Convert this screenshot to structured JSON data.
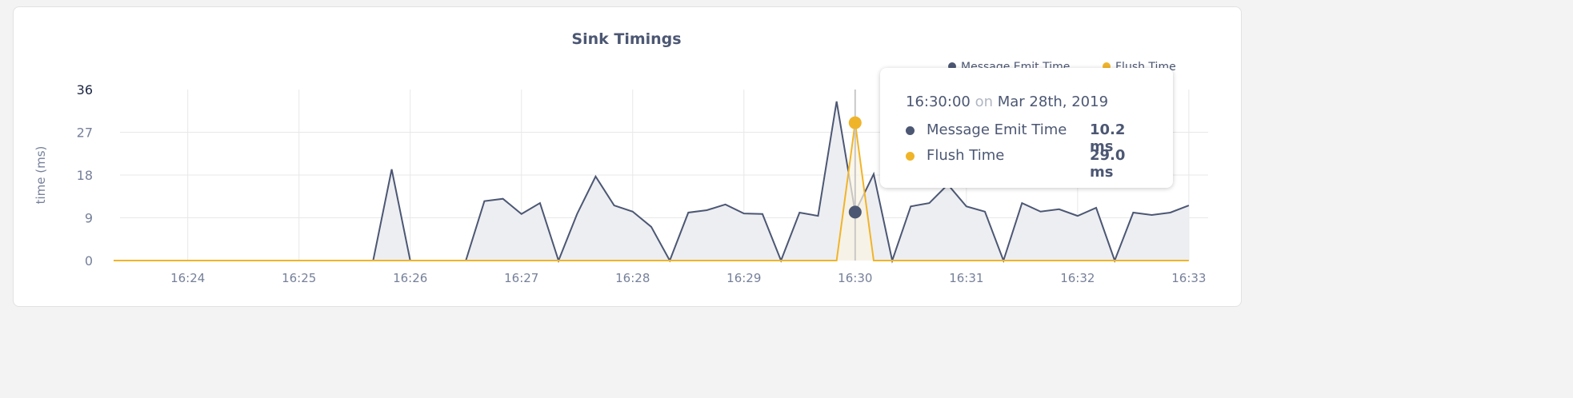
{
  "colors": {
    "message": "#4c5773",
    "flush": "#f0b429",
    "fill_message": "#edeef2",
    "fill_flush": "#fbf4e3",
    "grid": "#e8e8e8"
  },
  "chart_data": {
    "type": "area",
    "title": "Sink Timings",
    "xlabel": "",
    "ylabel": "time (ms)",
    "ylim": [
      0,
      36
    ],
    "yticks": [
      "0",
      "9",
      "18",
      "27",
      "36"
    ],
    "xticks": [
      "16:24",
      "16:25",
      "16:26",
      "16:27",
      "16:28",
      "16:29",
      "16:30",
      "16:31",
      "16:32",
      "16:33"
    ],
    "x_start": "16:23:20",
    "x_interval_seconds": 10,
    "grid": true,
    "legend_placement": "top-right",
    "series": [
      {
        "name": "Message Emit Time",
        "values": [
          0,
          0,
          0,
          0,
          0,
          0,
          0,
          0,
          0,
          0,
          0,
          0,
          0,
          0,
          0,
          19.2,
          0,
          0,
          0,
          0,
          12.5,
          13,
          9.8,
          12.1,
          0,
          9.8,
          17.7,
          11.6,
          10.3,
          7.1,
          0,
          10.1,
          10.6,
          11.8,
          9.9,
          9.8,
          0,
          10.1,
          9.4,
          33.5,
          10.2,
          18.2,
          0,
          11.4,
          12.1,
          16,
          11.4,
          10.3,
          0,
          12.1,
          10.3,
          10.8,
          9.4,
          11.1,
          0,
          10.1,
          9.6,
          10.1,
          11.6
        ]
      },
      {
        "name": "Flush Time",
        "values": [
          0,
          0,
          0,
          0,
          0,
          0,
          0,
          0,
          0,
          0,
          0,
          0,
          0,
          0,
          0,
          0,
          0,
          0,
          0,
          0,
          0,
          0,
          0,
          0,
          0,
          0,
          0,
          0,
          0,
          0,
          0,
          0,
          0,
          0,
          0,
          0,
          0,
          0,
          0,
          0,
          29.0,
          0,
          0,
          0,
          0,
          0,
          0,
          0,
          0,
          0,
          0,
          0,
          0,
          0,
          0,
          0,
          0,
          0,
          0
        ]
      }
    ],
    "hover_index": 40
  },
  "tooltip": {
    "time": "16:30:00",
    "on": "on",
    "date": "Mar 28th, 2019",
    "rows": [
      {
        "label": "Message Emit Time",
        "value": "10.2 ms"
      },
      {
        "label": "Flush Time",
        "value": "29.0 ms"
      }
    ]
  }
}
